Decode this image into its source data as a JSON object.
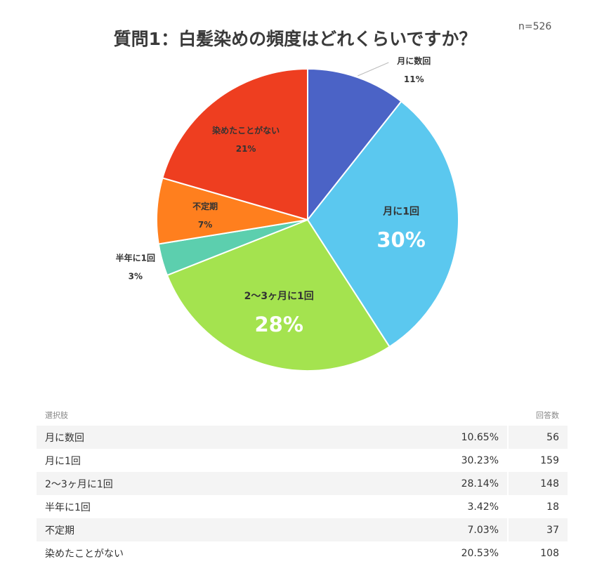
{
  "sample_size": "n=526",
  "table": {
    "header_choice": "選択肢",
    "header_count": "回答数",
    "rows": [
      {
        "label": "月に数回",
        "percent": "10.65%",
        "count": "56"
      },
      {
        "label": "月に1回",
        "percent": "30.23%",
        "count": "159"
      },
      {
        "label": "2〜3ヶ月に1回",
        "percent": "28.14%",
        "count": "148"
      },
      {
        "label": "半年に1回",
        "percent": "3.42%",
        "count": "18"
      },
      {
        "label": "不定期",
        "percent": "7.03%",
        "count": "37"
      },
      {
        "label": "染めたことがない",
        "percent": "20.53%",
        "count": "108"
      }
    ]
  },
  "chart_data": {
    "type": "pie",
    "title": "質問1：白髪染めの頻度はどれくらいですか？",
    "start": "12 o'clock, clockwise",
    "slices": [
      {
        "label": "月に数回",
        "value": 10.65,
        "display": "11%",
        "color": "#4b63c6",
        "label_position": "outside"
      },
      {
        "label": "月に1回",
        "value": 30.23,
        "display": "30%",
        "color": "#5bc8ef",
        "label_position": "inside-large"
      },
      {
        "label": "2〜3ヶ月に1回",
        "value": 28.14,
        "display": "28%",
        "color": "#a4e34f",
        "label_position": "inside-large"
      },
      {
        "label": "半年に1回",
        "value": 3.42,
        "display": "3%",
        "color": "#5ccfae",
        "label_position": "outside"
      },
      {
        "label": "不定期",
        "value": 7.03,
        "display": "7%",
        "color": "#ff7f1e",
        "label_position": "inside-small"
      },
      {
        "label": "染めたことがない",
        "value": 20.53,
        "display": "21%",
        "color": "#ee3e20",
        "label_position": "inside-small"
      }
    ]
  }
}
